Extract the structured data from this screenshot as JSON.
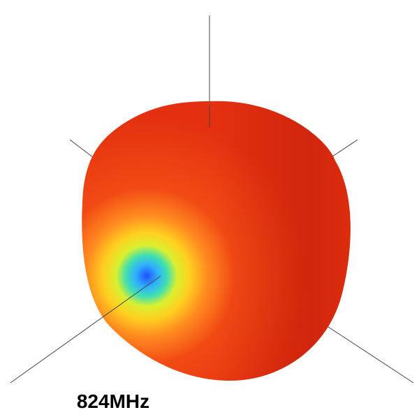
{
  "caption": "824MHz"
}
